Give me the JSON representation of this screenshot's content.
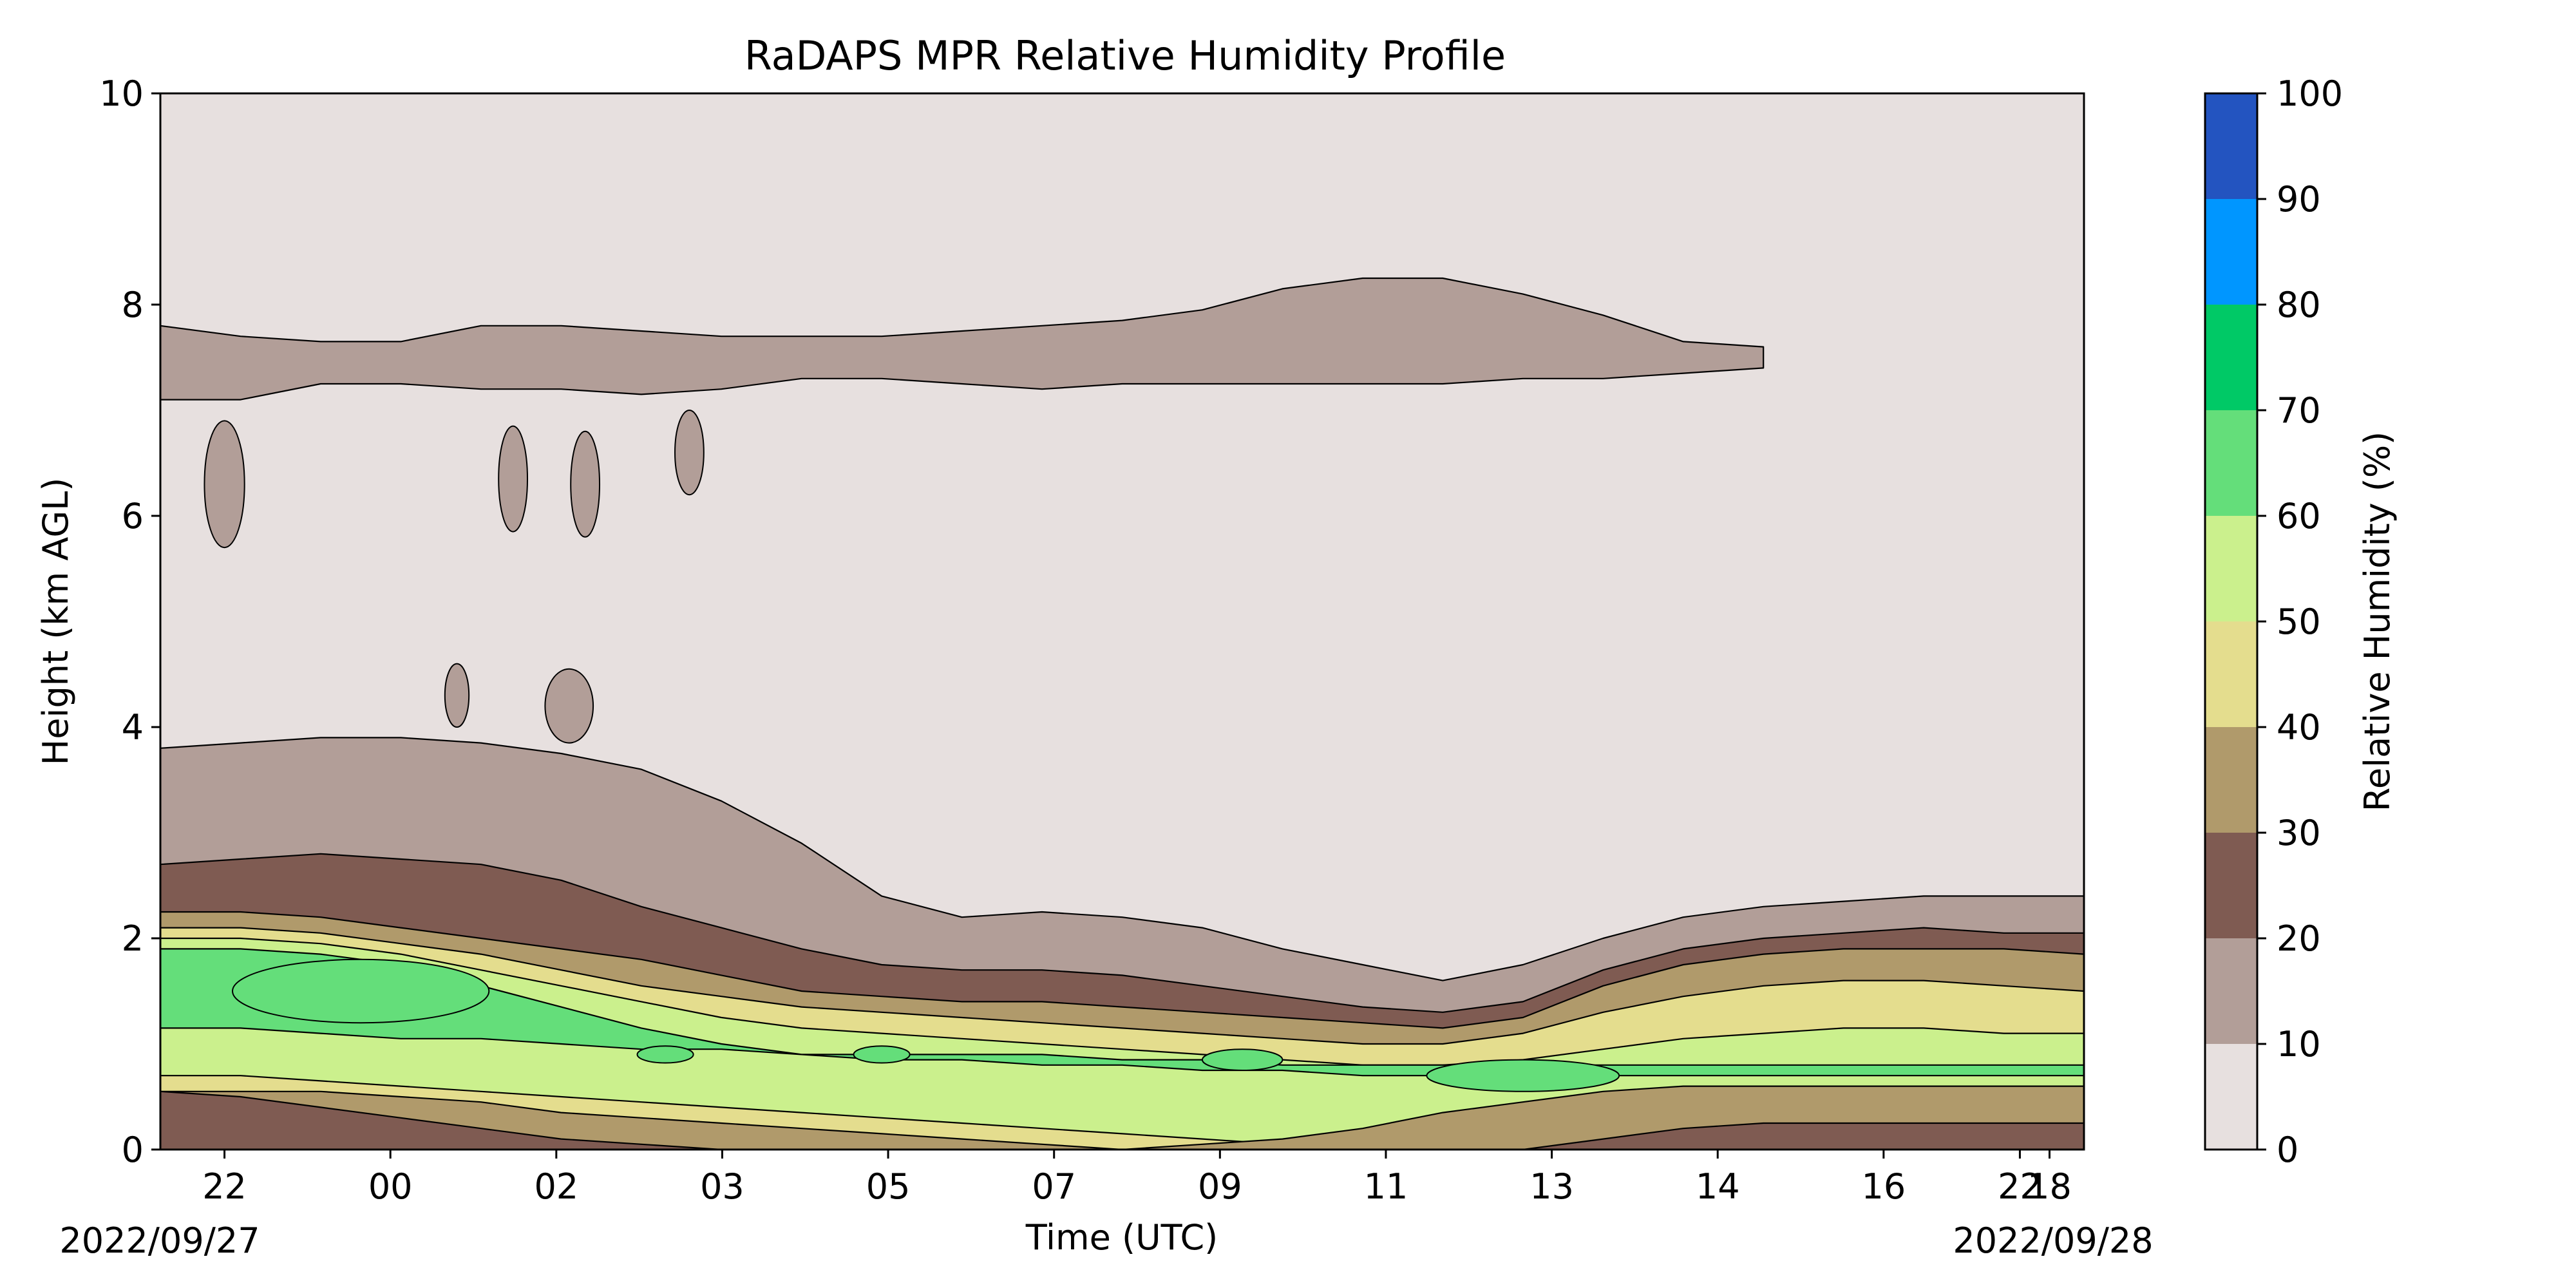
{
  "chart_data": {
    "type": "contour",
    "title": "RaDAPS MPR Relative Humidity Profile",
    "xlabel": "Time (UTC)",
    "ylabel": "Height (km AGL)",
    "colorbar_label": "Relative Humidity (%)",
    "x_tick_labels": [
      "22",
      "00",
      "02",
      "03",
      "05",
      "07",
      "09",
      "11",
      "13",
      "14",
      "16",
      "18",
      "22"
    ],
    "x_start_label": "2022/09/27",
    "x_end_label": "2022/09/28",
    "ylim": [
      0,
      10
    ],
    "y_ticks": [
      0,
      2,
      4,
      6,
      8,
      10
    ],
    "colorbar_levels": [
      0,
      10,
      20,
      30,
      40,
      50,
      60,
      70,
      80,
      90,
      100
    ],
    "colorbar_colors": [
      "#e7e0df",
      "#b29e98",
      "#7f5b52",
      "#b09a6b",
      "#e4dd8e",
      "#cbf08d",
      "#64de7a",
      "#00c966",
      "#0096ff",
      "#2354c0"
    ],
    "time_axis": [
      0,
      1,
      2,
      3,
      4,
      5,
      6,
      7,
      8,
      9,
      10,
      11,
      12,
      13,
      14,
      15,
      16,
      17,
      18,
      19,
      20,
      21,
      22,
      23,
      24
    ],
    "contour_profiles": {
      "rh_10_top_km": [
        3.8,
        3.85,
        3.9,
        3.9,
        3.85,
        3.75,
        3.6,
        3.3,
        2.9,
        2.4,
        2.2,
        2.25,
        2.2,
        2.1,
        1.9,
        1.75,
        1.6,
        1.75,
        2.0,
        2.2,
        2.3,
        2.35,
        2.4,
        2.4,
        2.4
      ],
      "rh_20_top_km": [
        2.7,
        2.75,
        2.8,
        2.75,
        2.7,
        2.55,
        2.3,
        2.1,
        1.9,
        1.75,
        1.7,
        1.7,
        1.65,
        1.55,
        1.45,
        1.35,
        1.3,
        1.4,
        1.7,
        1.9,
        2.0,
        2.05,
        2.1,
        2.05,
        2.05
      ],
      "rh_30_top_km": [
        2.25,
        2.25,
        2.2,
        2.1,
        2.0,
        1.9,
        1.8,
        1.65,
        1.5,
        1.45,
        1.4,
        1.4,
        1.35,
        1.3,
        1.25,
        1.2,
        1.15,
        1.25,
        1.55,
        1.75,
        1.85,
        1.9,
        1.9,
        1.9,
        1.85
      ],
      "rh_40_top_km": [
        2.1,
        2.1,
        2.05,
        1.95,
        1.85,
        1.7,
        1.55,
        1.45,
        1.35,
        1.3,
        1.25,
        1.2,
        1.15,
        1.1,
        1.05,
        1.0,
        1.0,
        1.1,
        1.3,
        1.45,
        1.55,
        1.6,
        1.6,
        1.55,
        1.5
      ],
      "rh_50_top_km": [
        2.0,
        2.0,
        1.95,
        1.85,
        1.7,
        1.55,
        1.4,
        1.25,
        1.15,
        1.1,
        1.05,
        1.0,
        0.95,
        0.9,
        0.85,
        0.8,
        0.8,
        0.85,
        0.95,
        1.05,
        1.1,
        1.15,
        1.15,
        1.1,
        1.1
      ],
      "rh_60_top_km": [
        1.9,
        1.9,
        1.85,
        1.75,
        1.55,
        1.35,
        1.15,
        1.0,
        0.9,
        0.85,
        0.85,
        0.8,
        0.8,
        0.75,
        0.75,
        0.7,
        0.7,
        0.7,
        0.7,
        0.7,
        0.7,
        0.7,
        0.7,
        0.7,
        0.7
      ],
      "rh_60_bottom_km": [
        1.15,
        1.15,
        1.1,
        1.05,
        1.05,
        1.0,
        0.95,
        0.95,
        0.9,
        0.9,
        0.9,
        0.9,
        0.85,
        0.85,
        0.8,
        0.8,
        0.8,
        0.8,
        0.8,
        0.8,
        0.8,
        0.8,
        0.8,
        0.8,
        0.8
      ],
      "rh_50_bottom_km": [
        0.7,
        0.7,
        0.65,
        0.6,
        0.55,
        0.5,
        0.45,
        0.4,
        0.35,
        0.3,
        0.25,
        0.2,
        0.15,
        0.1,
        0.05,
        0.0,
        0.0,
        0.0,
        0.0,
        0.0,
        0.0,
        0.0,
        0.0,
        0.0,
        0.0
      ],
      "rh_40_bottom_km": [
        0.55,
        0.55,
        0.55,
        0.5,
        0.45,
        0.35,
        0.3,
        0.25,
        0.2,
        0.15,
        0.1,
        0.05,
        0.0,
        0.05,
        0.1,
        0.2,
        0.35,
        0.45,
        0.55,
        0.6,
        0.6,
        0.6,
        0.6,
        0.6,
        0.6
      ],
      "rh_30_bottom_km": [
        0.0,
        0.0,
        0.05,
        0.1,
        0.15,
        0.2,
        0.15,
        0.1,
        0.05,
        0.0,
        0.0,
        0.0,
        0.0,
        0.0,
        0.0,
        0.0,
        0.05,
        0.15,
        0.3,
        0.35,
        0.4,
        0.4,
        0.4,
        0.4,
        0.4
      ],
      "rh_20_bottom_km": [
        0.55,
        0.5,
        0.4,
        0.3,
        0.2,
        0.1,
        0.05,
        0.0,
        0.0,
        0.0,
        0.0,
        0.0,
        0.0,
        0.0,
        0.0,
        0.0,
        0.0,
        0.0,
        0.1,
        0.2,
        0.25,
        0.25,
        0.25,
        0.25,
        0.25
      ]
    },
    "moist_patches": [
      {
        "t": 0.8,
        "z": 6.3,
        "dt": 0.25,
        "dz": 0.6
      },
      {
        "t": 4.4,
        "z": 6.35,
        "dt": 0.18,
        "dz": 0.5
      },
      {
        "t": 5.3,
        "z": 6.3,
        "dt": 0.18,
        "dz": 0.5
      },
      {
        "t": 6.6,
        "z": 6.6,
        "dt": 0.18,
        "dz": 0.4
      },
      {
        "t": 5.1,
        "z": 4.2,
        "dt": 0.3,
        "dz": 0.35
      },
      {
        "t": 3.7,
        "z": 4.3,
        "dt": 0.15,
        "dz": 0.3
      }
    ],
    "upper_band": {
      "center_km": [
        7.45,
        7.4,
        7.45,
        7.45,
        7.5,
        7.5,
        7.45,
        7.45,
        7.5,
        7.5,
        7.5,
        7.5,
        7.55,
        7.6,
        7.7,
        7.75,
        7.75,
        7.7,
        7.6,
        7.5,
        7.5,
        null,
        null,
        null,
        null
      ],
      "halfwidth_km": [
        0.35,
        0.3,
        0.2,
        0.2,
        0.3,
        0.3,
        0.3,
        0.25,
        0.2,
        0.2,
        0.25,
        0.3,
        0.3,
        0.35,
        0.45,
        0.5,
        0.5,
        0.4,
        0.3,
        0.15,
        0.1,
        null,
        null,
        null,
        null
      ]
    },
    "green_cores": [
      {
        "t": 2.5,
        "z": 1.5,
        "dt": 1.6,
        "dz": 0.3
      },
      {
        "t": 6.3,
        "z": 0.9,
        "dt": 0.35,
        "dz": 0.08
      },
      {
        "t": 9.0,
        "z": 0.9,
        "dt": 0.35,
        "dz": 0.08
      },
      {
        "t": 13.5,
        "z": 0.85,
        "dt": 0.5,
        "dz": 0.1
      },
      {
        "t": 17.0,
        "z": 0.7,
        "dt": 1.2,
        "dz": 0.15
      }
    ],
    "grid": false,
    "colorbar_position": "right"
  }
}
